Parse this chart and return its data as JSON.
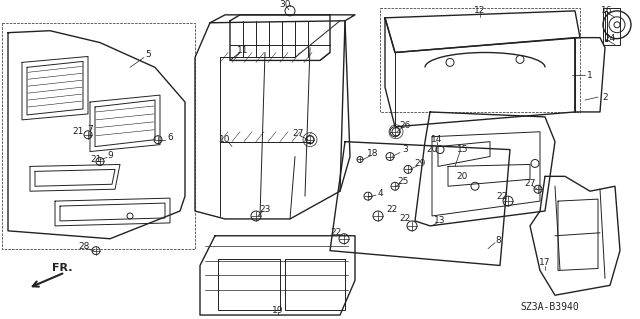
{
  "diagram_code": "SZ3A-B3940",
  "background_color": "#ffffff",
  "line_color": "#222222",
  "text_color": "#222222",
  "figsize": [
    6.4,
    3.19
  ],
  "dpi": 100,
  "img_extent": [
    0,
    640,
    0,
    319
  ]
}
